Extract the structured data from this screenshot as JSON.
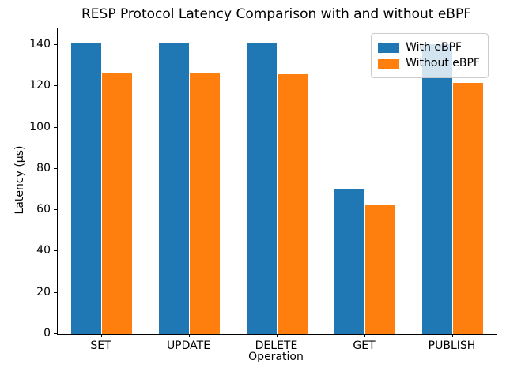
{
  "chart_data": {
    "type": "bar",
    "title": "RESP Protocol Latency Comparison with and without eBPF",
    "xlabel": "Operation",
    "ylabel": "Latency (µs)",
    "categories": [
      "SET",
      "UPDATE",
      "DELETE",
      "GET",
      "PUBLISH"
    ],
    "series": [
      {
        "name": "With eBPF",
        "color": "#1f77b4",
        "values": [
          141.0,
          140.6,
          141.0,
          69.8,
          140.5
        ]
      },
      {
        "name": "Without eBPF",
        "color": "#ff7f0e",
        "values": [
          126.2,
          126.2,
          126.0,
          62.8,
          121.8
        ]
      }
    ],
    "ylim": [
      0,
      148
    ],
    "yticks": [
      0,
      20,
      40,
      60,
      80,
      100,
      120,
      140
    ],
    "bar_width_ratio": 0.35,
    "grid": false,
    "legend_position": "upper right",
    "colors": {
      "axis": "#000000",
      "text": "#000000",
      "legend_border": "#cccccc"
    }
  }
}
